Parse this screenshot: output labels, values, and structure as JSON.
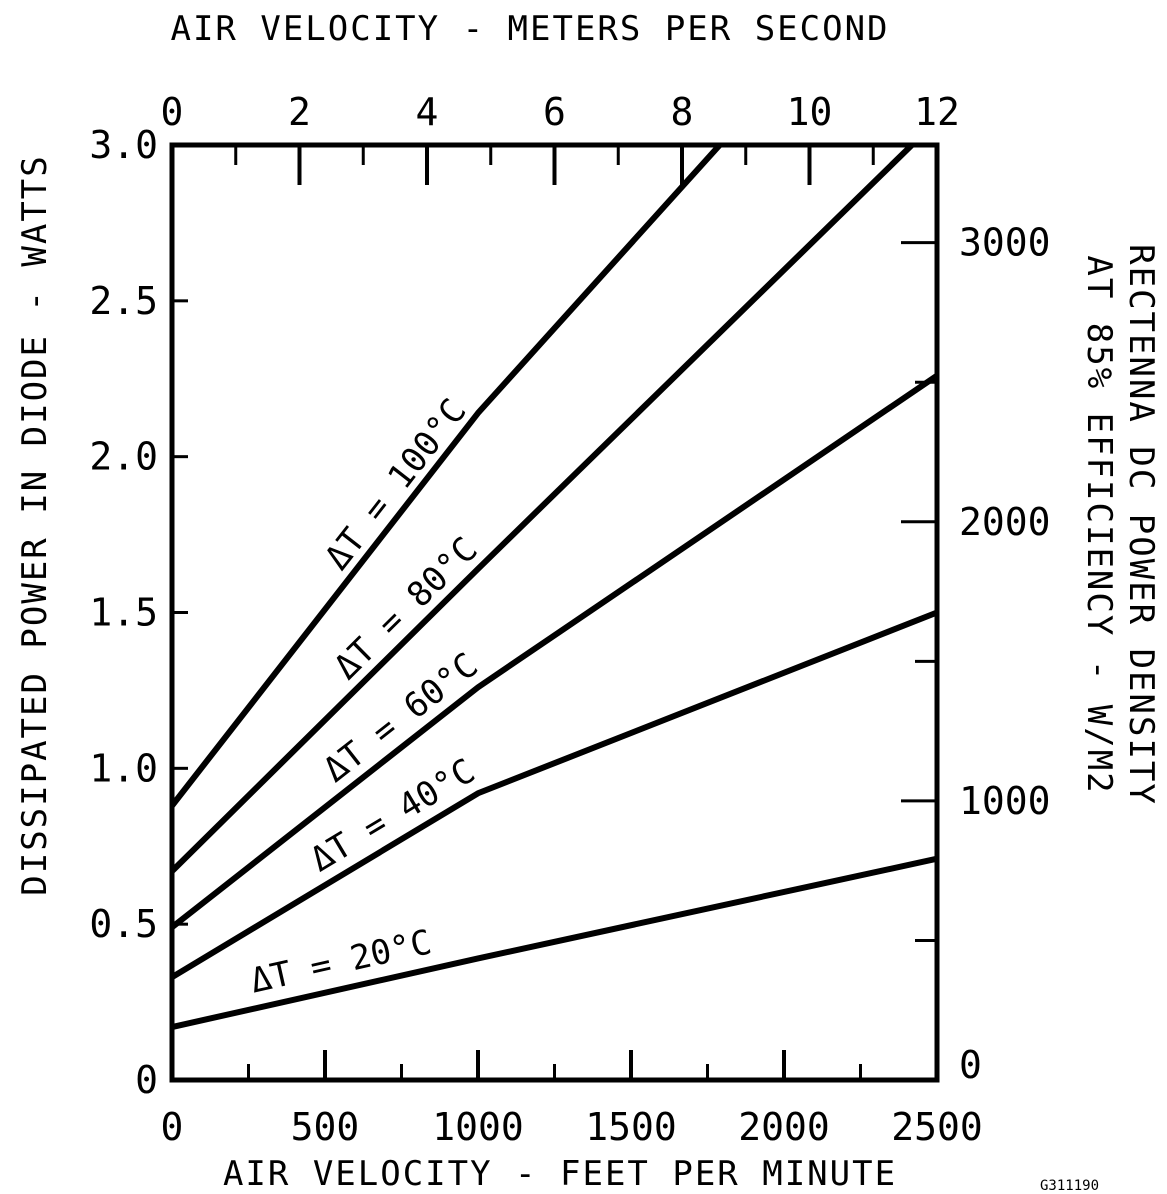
{
  "chart_data": {
    "type": "line",
    "title": "",
    "top_axis": {
      "label": "AIR VELOCITY - METERS PER SECOND",
      "range": [
        0,
        12
      ],
      "ticks": [
        "0",
        "2",
        "4",
        "6",
        "8",
        "10",
        "12"
      ]
    },
    "bottom_axis": {
      "label": "AIR VELOCITY - FEET PER MINUTE",
      "range": [
        0,
        2500
      ],
      "ticks": [
        "0",
        "500",
        "1000",
        "1500",
        "2000",
        "2500"
      ]
    },
    "left_axis": {
      "label": "DISSIPATED POWER IN DIODE - WATTS",
      "range": [
        0,
        3.0
      ],
      "ticks": [
        "0",
        "0.5",
        "1.0",
        "1.5",
        "2.0",
        "2.5",
        "3.0"
      ]
    },
    "right_axis": {
      "label_line1": "RECTENNA DC POWER DENSITY",
      "label_line2": "AT 85% EFFICIENCY - W/M2",
      "range": [
        0,
        3350
      ],
      "ticks": [
        "0",
        "1000",
        "2000",
        "3000"
      ]
    },
    "grid": false,
    "series": [
      {
        "name": "ΔT = 20°C",
        "x": [
          0,
          1000,
          2500
        ],
        "y": [
          0.17,
          0.39,
          0.71
        ]
      },
      {
        "name": "ΔT = 40°C",
        "x": [
          0,
          1000,
          2500
        ],
        "y": [
          0.33,
          0.92,
          1.5
        ]
      },
      {
        "name": "ΔT = 60°C",
        "x": [
          0,
          1000,
          2500
        ],
        "y": [
          0.49,
          1.26,
          2.26
        ]
      },
      {
        "name": "ΔT = 80°C",
        "x": [
          0,
          1000,
          2418
        ],
        "y": [
          0.67,
          1.64,
          3.0
        ]
      },
      {
        "name": "ΔT = 100°C",
        "x": [
          0,
          1000,
          1790
        ],
        "y": [
          0.88,
          2.14,
          3.0
        ]
      }
    ],
    "figure_id": "G311190"
  }
}
